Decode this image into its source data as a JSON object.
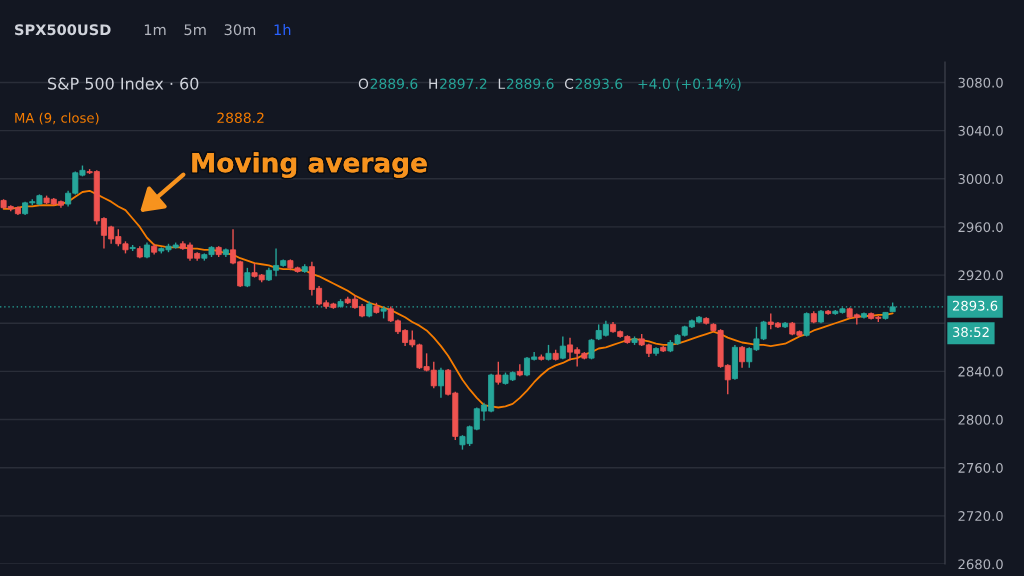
{
  "chart_data": {
    "type": "candlestick",
    "title": "S&P 500 Index · 60",
    "categories": [
      null,
      null,
      null,
      null,
      null,
      null,
      null,
      null,
      null,
      null,
      null,
      null,
      null,
      null,
      null,
      null,
      null,
      null,
      null,
      null,
      null,
      null,
      null,
      null,
      null,
      null,
      null,
      null,
      null,
      null,
      null,
      null,
      null,
      null,
      null,
      null,
      null,
      null,
      null,
      null,
      null,
      null,
      null,
      null,
      null,
      null,
      null,
      null,
      null,
      null,
      null,
      null,
      null,
      null,
      null,
      null,
      null,
      null,
      null,
      null,
      null,
      null,
      null,
      null,
      null,
      null,
      null,
      null,
      null,
      null,
      null,
      null,
      null,
      null,
      null,
      null,
      null,
      null,
      null,
      null,
      null,
      null,
      null,
      null,
      null,
      null,
      null,
      null,
      null,
      null,
      null,
      null,
      null,
      null,
      null,
      null,
      null,
      null,
      null,
      null,
      null,
      null,
      null,
      null,
      null,
      null,
      null,
      null,
      null,
      null,
      null,
      null,
      null,
      null,
      null,
      null,
      null,
      null,
      null,
      null,
      null,
      null,
      null,
      null,
      null
    ],
    "ohlc": [
      [
        2982,
        2983,
        2975,
        2976
      ],
      [
        2977,
        2978,
        2973,
        2975
      ],
      [
        2976,
        2977,
        2970,
        2971
      ],
      [
        2971,
        2981,
        2970,
        2980
      ],
      [
        2980,
        2983,
        2978,
        2981
      ],
      [
        2979,
        2987,
        2978,
        2986
      ],
      [
        2984,
        2986,
        2979,
        2980
      ],
      [
        2983,
        2984,
        2978,
        2979
      ],
      [
        2981,
        2982,
        2976,
        2978
      ],
      [
        2979,
        2990,
        2977,
        2988
      ],
      [
        2988,
        3006,
        2987,
        3005
      ],
      [
        3003,
        3011,
        3002,
        3007
      ],
      [
        3006,
        3008,
        3004,
        3005
      ],
      [
        3006,
        3007,
        2962,
        2965
      ],
      [
        2967,
        2968,
        2942,
        2953
      ],
      [
        2960,
        2961,
        2946,
        2950
      ],
      [
        2952,
        2958,
        2944,
        2946
      ],
      [
        2946,
        2948,
        2938,
        2941
      ],
      [
        2942,
        2945,
        2940,
        2943
      ],
      [
        2942,
        2944,
        2934,
        2935
      ],
      [
        2935,
        2947,
        2934,
        2945
      ],
      [
        2944,
        2946,
        2937,
        2939
      ],
      [
        2940,
        2943,
        2938,
        2942
      ],
      [
        2941,
        2946,
        2939,
        2944
      ],
      [
        2943,
        2947,
        2942,
        2945
      ],
      [
        2946,
        2948,
        2941,
        2942
      ],
      [
        2945,
        2947,
        2932,
        2934
      ],
      [
        2938,
        2939,
        2932,
        2934
      ],
      [
        2934,
        2938,
        2932,
        2937
      ],
      [
        2937,
        2944,
        2935,
        2943
      ],
      [
        2943,
        2944,
        2935,
        2937
      ],
      [
        2937,
        2942,
        2935,
        2941
      ],
      [
        2941,
        2958,
        2929,
        2930
      ],
      [
        2931,
        2932,
        2910,
        2911
      ],
      [
        2911,
        2926,
        2910,
        2922
      ],
      [
        2922,
        2930,
        2918,
        2919
      ],
      [
        2920,
        2921,
        2914,
        2916
      ],
      [
        2916,
        2926,
        2915,
        2924
      ],
      [
        2924,
        2942,
        2919,
        2928
      ],
      [
        2928,
        2933,
        2927,
        2932
      ],
      [
        2932,
        2933,
        2924,
        2926
      ],
      [
        2926,
        2927,
        2922,
        2923
      ],
      [
        2923,
        2929,
        2922,
        2927
      ],
      [
        2927,
        2931,
        2903,
        2908
      ],
      [
        2909,
        2911,
        2895,
        2896
      ],
      [
        2897,
        2899,
        2892,
        2894
      ],
      [
        2896,
        2897,
        2892,
        2893
      ],
      [
        2894,
        2900,
        2893,
        2898
      ],
      [
        2900,
        2902,
        2896,
        2897
      ],
      [
        2900,
        2903,
        2892,
        2893
      ],
      [
        2894,
        2896,
        2885,
        2886
      ],
      [
        2886,
        2898,
        2885,
        2896
      ],
      [
        2894,
        2897,
        2888,
        2889
      ],
      [
        2890,
        2894,
        2884,
        2892
      ],
      [
        2892,
        2894,
        2881,
        2882
      ],
      [
        2882,
        2883,
        2871,
        2873
      ],
      [
        2874,
        2875,
        2861,
        2864
      ],
      [
        2866,
        2874,
        2860,
        2862
      ],
      [
        2862,
        2863,
        2842,
        2843
      ],
      [
        2844,
        2855,
        2840,
        2841
      ],
      [
        2841,
        2848,
        2826,
        2828
      ],
      [
        2828,
        2843,
        2818,
        2841
      ],
      [
        2841,
        2842,
        2820,
        2821
      ],
      [
        2822,
        2823,
        2783,
        2786
      ],
      [
        2779,
        2787,
        2775,
        2786
      ],
      [
        2780,
        2795,
        2778,
        2794
      ],
      [
        2792,
        2810,
        2791,
        2809
      ],
      [
        2807,
        2814,
        2799,
        2812
      ],
      [
        2807,
        2838,
        2806,
        2837
      ],
      [
        2837,
        2848,
        2829,
        2831
      ],
      [
        2830,
        2839,
        2829,
        2837
      ],
      [
        2833,
        2840,
        2832,
        2839
      ],
      [
        2840,
        2846,
        2836,
        2837
      ],
      [
        2837,
        2852,
        2836,
        2851
      ],
      [
        2850,
        2856,
        2849,
        2852
      ],
      [
        2852,
        2854,
        2849,
        2850
      ],
      [
        2850,
        2862,
        2849,
        2855
      ],
      [
        2855,
        2858,
        2849,
        2850
      ],
      [
        2851,
        2869,
        2850,
        2861
      ],
      [
        2862,
        2868,
        2849,
        2856
      ],
      [
        2858,
        2860,
        2844,
        2855
      ],
      [
        2855,
        2856,
        2850,
        2851
      ],
      [
        2851,
        2867,
        2850,
        2866
      ],
      [
        2867,
        2879,
        2866,
        2874
      ],
      [
        2870,
        2882,
        2869,
        2879
      ],
      [
        2879,
        2881,
        2872,
        2873
      ],
      [
        2873,
        2874,
        2868,
        2869
      ],
      [
        2869,
        2870,
        2863,
        2864
      ],
      [
        2864,
        2869,
        2862,
        2867
      ],
      [
        2867,
        2871,
        2861,
        2862
      ],
      [
        2862,
        2863,
        2852,
        2855
      ],
      [
        2855,
        2860,
        2853,
        2859
      ],
      [
        2860,
        2861,
        2856,
        2857
      ],
      [
        2857,
        2866,
        2856,
        2864
      ],
      [
        2863,
        2871,
        2862,
        2870
      ],
      [
        2870,
        2878,
        2869,
        2877
      ],
      [
        2877,
        2883,
        2876,
        2882
      ],
      [
        2881,
        2886,
        2880,
        2885
      ],
      [
        2884,
        2885,
        2879,
        2880
      ],
      [
        2879,
        2880,
        2873,
        2874
      ],
      [
        2874,
        2875,
        2843,
        2844
      ],
      [
        2845,
        2846,
        2821,
        2833
      ],
      [
        2834,
        2862,
        2833,
        2860
      ],
      [
        2860,
        2861,
        2843,
        2848
      ],
      [
        2848,
        2860,
        2843,
        2859
      ],
      [
        2858,
        2877,
        2857,
        2867
      ],
      [
        2867,
        2882,
        2866,
        2881
      ],
      [
        2881,
        2888,
        2875,
        2879
      ],
      [
        2880,
        2881,
        2876,
        2877
      ],
      [
        2877,
        2881,
        2876,
        2880
      ],
      [
        2880,
        2881,
        2870,
        2871
      ],
      [
        2873,
        2874,
        2869,
        2870
      ],
      [
        2870,
        2889,
        2869,
        2888
      ],
      [
        2888,
        2890,
        2880,
        2881
      ],
      [
        2881,
        2891,
        2880,
        2890
      ],
      [
        2890,
        2891,
        2887,
        2888
      ],
      [
        2888,
        2891,
        2887,
        2890
      ],
      [
        2889,
        2893,
        2888,
        2892
      ],
      [
        2892,
        2893,
        2884,
        2885
      ],
      [
        2887,
        2888,
        2879,
        2885
      ],
      [
        2885,
        2889,
        2884,
        2888
      ],
      [
        2888,
        2889,
        2883,
        2884
      ],
      [
        2885,
        2886,
        2881,
        2884
      ],
      [
        2884,
        2889,
        2883,
        2889
      ],
      [
        2889.6,
        2897.2,
        2889.6,
        2893.6
      ]
    ],
    "colors": [
      "#ef5350",
      "#ef5350",
      "#ef5350",
      "#26a69a",
      "#26a69a",
      "#26a69a",
      "#ef5350",
      "#ef5350",
      "#ef5350",
      "#26a69a",
      "#26a69a",
      "#26a69a",
      "#ef5350",
      "#ef5350",
      "#ef5350",
      "#ef5350",
      "#ef5350",
      "#ef5350",
      "#26a69a",
      "#ef5350",
      "#26a69a",
      "#ef5350",
      "#26a69a",
      "#26a69a",
      "#26a69a",
      "#ef5350",
      "#ef5350",
      "#ef5350",
      "#26a69a",
      "#26a69a",
      "#ef5350",
      "#26a69a",
      "#ef5350",
      "#ef5350",
      "#26a69a",
      "#ef5350",
      "#ef5350",
      "#26a69a",
      "#26a69a",
      "#26a69a",
      "#ef5350",
      "#ef5350",
      "#26a69a",
      "#ef5350",
      "#ef5350",
      "#ef5350",
      "#ef5350",
      "#26a69a",
      "#ef5350",
      "#ef5350",
      "#ef5350",
      "#26a69a",
      "#ef5350",
      "#26a69a",
      "#ef5350",
      "#ef5350",
      "#ef5350",
      "#ef5350",
      "#ef5350",
      "#ef5350",
      "#ef5350",
      "#26a69a",
      "#ef5350",
      "#ef5350",
      "#26a69a",
      "#26a69a",
      "#26a69a",
      "#26a69a",
      "#26a69a",
      "#ef5350",
      "#26a69a",
      "#26a69a",
      "#ef5350",
      "#26a69a",
      "#26a69a",
      "#ef5350",
      "#26a69a",
      "#ef5350",
      "#26a69a",
      "#ef5350",
      "#ef5350",
      "#ef5350",
      "#26a69a",
      "#26a69a",
      "#26a69a",
      "#ef5350",
      "#ef5350",
      "#ef5350",
      "#26a69a",
      "#ef5350",
      "#ef5350",
      "#26a69a",
      "#ef5350",
      "#26a69a",
      "#26a69a",
      "#26a69a",
      "#26a69a",
      "#26a69a",
      "#ef5350",
      "#ef5350",
      "#ef5350",
      "#ef5350",
      "#26a69a",
      "#ef5350",
      "#26a69a",
      "#26a69a",
      "#26a69a",
      "#ef5350",
      "#ef5350",
      "#26a69a",
      "#ef5350",
      "#ef5350",
      "#26a69a",
      "#ef5350",
      "#26a69a",
      "#ef5350",
      "#26a69a",
      "#26a69a",
      "#ef5350",
      "#ef5350",
      "#26a69a",
      "#ef5350",
      "#ef5350",
      "#26a69a",
      "#26a69a"
    ],
    "series": [
      {
        "name": "MA (9, close)",
        "type": "line",
        "color": "#f57c00",
        "values": [
          2975,
          2975,
          2976,
          2977,
          2977,
          2978,
          2978,
          2978,
          2979,
          2981,
          2985,
          2989,
          2990,
          2987,
          2984,
          2981,
          2977,
          2974,
          2967,
          2960,
          2951,
          2945,
          2944,
          2943,
          2943,
          2943,
          2942,
          2942,
          2941,
          2941,
          2940,
          2938,
          2937,
          2934,
          2932,
          2930,
          2929,
          2928,
          2926,
          2925,
          2925,
          2924,
          2924,
          2921,
          2919,
          2916,
          2913,
          2910,
          2907,
          2903,
          2900,
          2897,
          2895,
          2893,
          2891,
          2888,
          2885,
          2881,
          2878,
          2874,
          2868,
          2861,
          2853,
          2843,
          2833,
          2825,
          2818,
          2812,
          2811,
          2810,
          2811,
          2813,
          2818,
          2824,
          2831,
          2837,
          2842,
          2845,
          2847,
          2850,
          2851,
          2854,
          2856,
          2859,
          2860,
          2862,
          2864,
          2866,
          2867,
          2866,
          2865,
          2863,
          2862,
          2862,
          2863,
          2865,
          2867,
          2869,
          2871,
          2873,
          2871,
          2868,
          2866,
          2864,
          2863,
          2862,
          2862,
          2861,
          2862,
          2863,
          2866,
          2869,
          2871,
          2874,
          2876,
          2878,
          2880,
          2882,
          2884,
          2885,
          2886,
          2886,
          2887,
          2887,
          2888.2
        ]
      }
    ],
    "ylim": [
      2680,
      3097
    ],
    "yticks": [
      {
        "value": 2680,
        "label": "2680.0"
      },
      {
        "value": 2720,
        "label": "2720.0"
      },
      {
        "value": 2760,
        "label": "2760.0"
      },
      {
        "value": 2800,
        "label": "2800.0"
      },
      {
        "value": 2840,
        "label": "2840.0"
      },
      {
        "value": 2880,
        "label": null
      },
      {
        "value": 2920,
        "label": "2920.0"
      },
      {
        "value": 2960,
        "label": "2960.0"
      },
      {
        "value": 3000,
        "label": "3000.0"
      },
      {
        "value": 3040,
        "label": "3040.0"
      },
      {
        "value": 3080,
        "label": "3080.0"
      }
    ],
    "grid": "y",
    "tick_labels": "y",
    "ref_lines": [
      {
        "axis": "y",
        "value": 2893.6,
        "label": "2893.6",
        "color": "#26a69a",
        "line_style": "dotted"
      }
    ],
    "annotations": [
      "Moving average",
      "38:52",
      "O",
      "2889.6",
      "H",
      "2897.2",
      "L",
      "2889.6",
      "C",
      "2893.6",
      "+4.0 (+0.14%)",
      "2888.2",
      "SPX500USD",
      "1m",
      "5m",
      "30m",
      "1h"
    ]
  }
}
